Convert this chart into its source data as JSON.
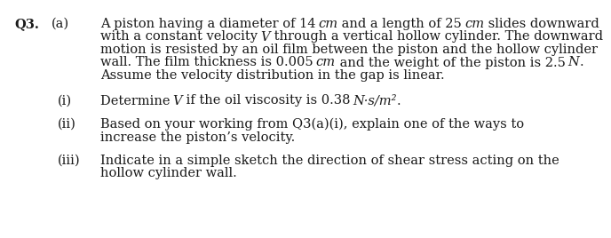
{
  "background_color": "#ffffff",
  "text_color": "#1a1a1a",
  "font_size": 10.5,
  "q_label": "Q3.",
  "a_label": "(a)",
  "main_text_lines": [
    "A piston having a diameter of 14 cm and a length of 25 cm slides downward",
    "with a constant velocity V through a vertical hollow cylinder. The downward",
    "motion is resisted by an oil film between the piston and the hollow cylinder",
    "wall. The film thickness is 0.005 cm and the weight of the piston is 2.5 N.",
    "Assume the velocity distribution in the gap is linear."
  ],
  "sub_items": [
    {
      "label": "(i)",
      "lines": [
        "Determine V if the oil viscosity is 0.38 N·s/m²."
      ]
    },
    {
      "label": "(ii)",
      "lines": [
        "Based on your working from Q3(a)(i), explain one of the ways to",
        "increase the piston’s velocity."
      ]
    },
    {
      "label": "(iii)",
      "lines": [
        "Indicate in a simple sketch the direction of shear stress acting on the",
        "hollow cylinder wall."
      ]
    }
  ],
  "italic_words_main": [
    "cm",
    "cm",
    "V",
    "cm",
    "N"
  ],
  "italic_words_sub": [
    "V",
    "N·s/m²"
  ]
}
